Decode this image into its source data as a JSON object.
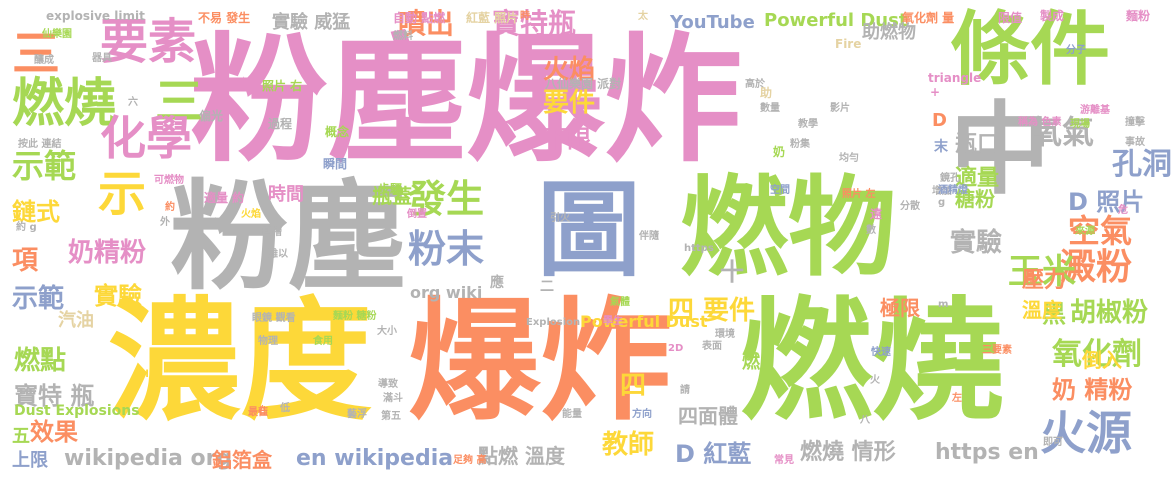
{
  "words": [
    {
      "text": "粉塵爆炸",
      "color": "#e58fc6"
    },
    {
      "text": "濃度",
      "color": "#fdd839"
    },
    {
      "text": "爆炸",
      "color": "#fb8e62"
    },
    {
      "text": "燃燒",
      "color": "#a6d854"
    },
    {
      "text": "粉塵",
      "color": "#b3b3b3"
    },
    {
      "text": "燃物",
      "color": "#a6d854"
    },
    {
      "text": "圖",
      "color": "#8ea0cb"
    },
    {
      "text": "條件",
      "color": "#a6d854"
    },
    {
      "text": "中",
      "color": "#b3b3b3"
    },
    {
      "text": "要素",
      "color": "#e58fc6"
    },
    {
      "text": "三",
      "color": "#fb8e62"
    },
    {
      "text": "燃燒",
      "color": "#a6d854"
    },
    {
      "text": "三",
      "color": "#a6d854"
    },
    {
      "text": "化學",
      "color": "#e58fc6"
    },
    {
      "text": "示範",
      "color": "#a6d854"
    },
    {
      "text": "示",
      "color": "#fdd839"
    },
    {
      "text": "粉末",
      "color": "#8ea0cb"
    },
    {
      "text": "發生",
      "color": "#a6d854"
    },
    {
      "text": "火源",
      "color": "#8ea0cb"
    },
    {
      "text": "澱粉",
      "color": "#fb8e62"
    },
    {
      "text": "玉米",
      "color": "#a6d854"
    },
    {
      "text": "空氣",
      "color": "#fb8e62"
    },
    {
      "text": "孔洞",
      "color": "#8ea0cb"
    },
    {
      "text": "氧氣",
      "color": "#b3b3b3"
    },
    {
      "text": "噴出",
      "color": "#fb8e62"
    },
    {
      "text": "寶特瓶",
      "color": "#e58fc6"
    },
    {
      "text": "火焰",
      "color": "#fb8e62"
    },
    {
      "text": "要件",
      "color": "#fdd839"
    },
    {
      "text": "下限",
      "color": "#e58fc6"
    },
    {
      "text": "實驗",
      "color": "#b3b3b3"
    },
    {
      "text": "奶精粉",
      "color": "#e58fc6"
    },
    {
      "text": "示範",
      "color": "#8ea0cb"
    },
    {
      "text": "實驗",
      "color": "#fdd839"
    },
    {
      "text": "鏈式",
      "color": "#fdd839"
    },
    {
      "text": "項",
      "color": "#fb8e62"
    },
    {
      "text": "燃點",
      "color": "#a6d854"
    },
    {
      "text": "寶特 瓶",
      "color": "#b3b3b3"
    },
    {
      "text": "效果",
      "color": "#fb8e62"
    },
    {
      "text": "汽油",
      "color": "#e5d3a3"
    },
    {
      "text": "org wiki",
      "color": "#b3b3b3"
    },
    {
      "text": "四 要件",
      "color": "#fdd839"
    },
    {
      "text": "四",
      "color": "#fdd839"
    },
    {
      "text": "四面體",
      "color": "#b3b3b3"
    },
    {
      "text": "教師",
      "color": "#fdd839"
    },
    {
      "text": "D 紅藍",
      "color": "#8ea0cb"
    },
    {
      "text": "燃燒 情形",
      "color": "#b3b3b3"
    },
    {
      "text": "https en",
      "color": "#b3b3b3"
    },
    {
      "text": "wikipedia org",
      "color": "#b3b3b3"
    },
    {
      "text": "en wikipedia",
      "color": "#8ea0cb"
    },
    {
      "text": "點燃 溫度",
      "color": "#b3b3b3"
    },
    {
      "text": "鋁箔盒",
      "color": "#fb8e62"
    },
    {
      "text": "上限",
      "color": "#8ea0cb"
    },
    {
      "text": "五",
      "color": "#a6d854"
    },
    {
      "text": "氧化劑",
      "color": "#a6d854"
    },
    {
      "text": "胡椒粉",
      "color": "#a6d854"
    },
    {
      "text": "黑",
      "color": "#a6d854"
    },
    {
      "text": "奶 精粉",
      "color": "#fb8e62"
    },
    {
      "text": "瓶口",
      "color": "#b3b3b3"
    },
    {
      "text": "適量",
      "color": "#a6d854"
    },
    {
      "text": "糖粉",
      "color": "#a6d854"
    },
    {
      "text": "倒入",
      "color": "#fdd839"
    },
    {
      "text": "D 照片",
      "color": "#8ea0cb"
    },
    {
      "text": "壓力",
      "color": "#fb8e62"
    },
    {
      "text": "溫度",
      "color": "#fdd839"
    },
    {
      "text": "極限",
      "color": "#fb8e62"
    },
    {
      "text": "瓶蓋",
      "color": "#a6d854"
    },
    {
      "text": "時間",
      "color": "#e58fc6"
    },
    {
      "text": "YouTube",
      "color": "#8ea0cb"
    },
    {
      "text": "Powerful Dust",
      "color": "#a6d854"
    },
    {
      "text": "助燃物",
      "color": "#b3b3b3"
    },
    {
      "text": "實驗 威猛",
      "color": "#b3b3b3"
    },
    {
      "text": "Powerful Dust",
      "color": "#fdd839"
    },
    {
      "text": "Dust Explosions",
      "color": "#a6d854"
    },
    {
      "text": "explosive limit",
      "color": "#b3b3b3"
    },
    {
      "text": "不易 發生",
      "color": "#fb8e62"
    },
    {
      "text": "自動 點燃",
      "color": "#e58fc6"
    },
    {
      "text": "紅藍 照片",
      "color": "#e5d3a3"
    },
    {
      "text": "氧化劑 量",
      "color": "#fb8e62"
    },
    {
      "text": "限值",
      "color": "#e58fc6"
    },
    {
      "text": "製成",
      "color": "#e58fc6"
    },
    {
      "text": "麵粉",
      "color": "#e58fc6"
    },
    {
      "text": "Fire",
      "color": "#e5d3a3"
    },
    {
      "text": "triangle",
      "color": "#e58fc6"
    },
    {
      "text": "八仙樂園 派對",
      "color": "#b3b3b3"
    },
    {
      "text": "照片 右",
      "color": "#a6d854"
    },
    {
      "text": "適量 約",
      "color": "#e58fc6"
    },
    {
      "text": "步驟",
      "color": "#a6d854"
    },
    {
      "text": "可燃物",
      "color": "#e58fc6"
    },
    {
      "text": "燃料",
      "color": "#b3b3b3"
    },
    {
      "text": "分子",
      "color": "#8ea0cb"
    },
    {
      "text": "事故",
      "color": "#b3b3b3"
    },
    {
      "text": "游離基",
      "color": "#e58fc6"
    },
    {
      "text": "現場",
      "color": "#a6d854"
    },
    {
      "text": "撞擊",
      "color": "#b3b3b3"
    },
    {
      "text": "稱為 色素",
      "color": "#e58fc6"
    },
    {
      "text": "照片 左",
      "color": "#fb8e62"
    },
    {
      "text": "空間",
      "color": "#8ea0cb"
    },
    {
      "text": "瞬間",
      "color": "#8ea0cb"
    },
    {
      "text": "概念",
      "color": "#a6d854"
    },
    {
      "text": "偏光",
      "color": "#b3b3b3"
    },
    {
      "text": "過程",
      "color": "#b3b3b3"
    },
    {
      "text": "粉集",
      "color": "#b3b3b3"
    },
    {
      "text": "均勻",
      "color": "#b3b3b3"
    },
    {
      "text": "教學",
      "color": "#b3b3b3"
    },
    {
      "text": "影片",
      "color": "#b3b3b3"
    },
    {
      "text": "數量",
      "color": "#b3b3b3"
    },
    {
      "text": "高於",
      "color": "#b3b3b3"
    },
    {
      "text": "Explosion",
      "color": "#b3b3b3"
    },
    {
      "text": "學生",
      "color": "#e58fc6"
    },
    {
      "text": "氣體",
      "color": "#a6d854"
    },
    {
      "text": "環境",
      "color": "#b3b3b3"
    },
    {
      "text": "表面",
      "color": "#b3b3b3"
    },
    {
      "text": "2D",
      "color": "#e58fc6"
    },
    {
      "text": "快速",
      "color": "#8ea0cb"
    },
    {
      "text": "三要素",
      "color": "#fb8e62"
    },
    {
      "text": "麵粉 糖粉",
      "color": "#a6d854"
    },
    {
      "text": "食用",
      "color": "#a6d854"
    },
    {
      "text": "大小",
      "color": "#b3b3b3"
    },
    {
      "text": "眼鏡 觀看",
      "color": "#b3b3b3"
    },
    {
      "text": "物理",
      "color": "#b3b3b3"
    },
    {
      "text": "最佳",
      "color": "#fb8e62"
    },
    {
      "text": "藝浮",
      "color": "#b3b3b3"
    },
    {
      "text": "能量",
      "color": "#b3b3b3"
    },
    {
      "text": "方向",
      "color": "#8ea0cb"
    },
    {
      "text": "足夠 高",
      "color": "#fb8e62"
    },
    {
      "text": "常見",
      "color": "#e58fc6"
    },
    {
      "text": "即可",
      "color": "#b3b3b3"
    },
    {
      "text": "https",
      "color": "#b3b3b3"
    },
    {
      "text": "伴隨",
      "color": "#b3b3b3"
    },
    {
      "text": "增加",
      "color": "#b3b3b3"
    },
    {
      "text": "分散",
      "color": "#b3b3b3"
    },
    {
      "text": "鏡孔",
      "color": "#b3b3b3"
    },
    {
      "text": "酒精燈",
      "color": "#8ea0cb"
    },
    {
      "text": "來源",
      "color": "#a6d854"
    },
    {
      "text": "ml",
      "color": "#fdd839"
    },
    {
      "text": "約 g",
      "color": "#b3b3b3"
    },
    {
      "text": "按此 連結",
      "color": "#b3b3b3"
    },
    {
      "text": "仙樂園",
      "color": "#a6d854"
    },
    {
      "text": "器具",
      "color": "#b3b3b3"
    },
    {
      "text": "釀成",
      "color": "#b3b3b3"
    },
    {
      "text": "倒置",
      "color": "#e58fc6"
    },
    {
      "text": "凹槽",
      "color": "#b3b3b3"
    },
    {
      "text": "火焰",
      "color": "#fdd839"
    },
    {
      "text": "難以",
      "color": "#b3b3b3"
    },
    {
      "text": "引火",
      "color": "#b3b3b3"
    },
    {
      "text": "第五",
      "color": "#b3b3b3"
    },
    {
      "text": "導致",
      "color": "#b3b3b3"
    },
    {
      "text": "滿斗",
      "color": "#b3b3b3"
    },
    {
      "text": "D",
      "color": "#fb8e62"
    },
    {
      "text": "末",
      "color": "#8ea0cb"
    },
    {
      "text": "奶",
      "color": "#a6d854"
    },
    {
      "text": "助",
      "color": "#e5d3a3"
    },
    {
      "text": "外",
      "color": "#b3b3b3"
    },
    {
      "text": "應",
      "color": "#b3b3b3"
    },
    {
      "text": "二",
      "color": "#b3b3b3"
    },
    {
      "text": "燃",
      "color": "#a6d854"
    },
    {
      "text": "右",
      "color": "#fb8e62"
    },
    {
      "text": "左",
      "color": "#fb8e62"
    },
    {
      "text": "約",
      "color": "#fb8e62"
    },
    {
      "text": "低",
      "color": "#b3b3b3"
    },
    {
      "text": "火",
      "color": "#b3b3b3"
    },
    {
      "text": "請",
      "color": "#b3b3b3"
    },
    {
      "text": "時",
      "color": "#fb8e62"
    },
    {
      "text": "太",
      "color": "#e5d3a3"
    },
    {
      "text": "六",
      "color": "#b3b3b3"
    },
    {
      "text": "八",
      "color": "#b3b3b3"
    },
    {
      "text": "十",
      "color": "#b3b3b3"
    },
    {
      "text": "遠",
      "color": "#e58fc6"
    },
    {
      "text": "g",
      "color": "#b3b3b3"
    },
    {
      "text": "m",
      "color": "#b3b3b3"
    },
    {
      "text": "+",
      "color": "#e58fc6"
    },
    {
      "text": "危",
      "color": "#e58fc6"
    },
    {
      "text": "數",
      "color": "#b3b3b3"
    },
    {
      "text": "光 熱",
      "color": "#b3b3b3"
    }
  ]
}
